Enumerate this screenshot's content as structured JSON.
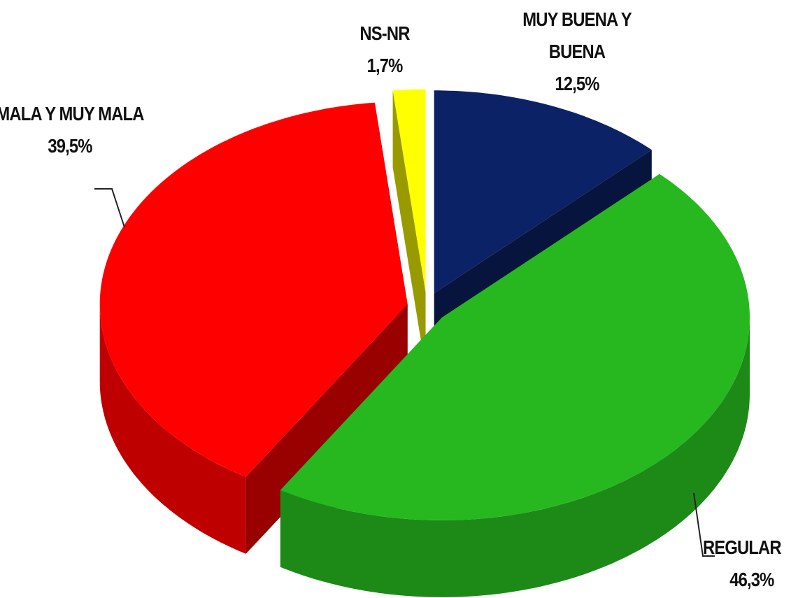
{
  "chart_data": {
    "type": "pie",
    "categories": [
      "MUY BUENA Y BUENA",
      "REGULAR",
      "MALA Y MUY MALA",
      "NS-NR"
    ],
    "values": [
      12.5,
      46.3,
      39.5,
      1.7
    ],
    "value_labels": [
      "12,5%",
      "46,3%",
      "39,5%",
      "1,7%"
    ],
    "colors": [
      "#0b2266",
      "#27b81f",
      "#ff0000",
      "#ffff00"
    ],
    "exploded": true,
    "three_d": true
  }
}
